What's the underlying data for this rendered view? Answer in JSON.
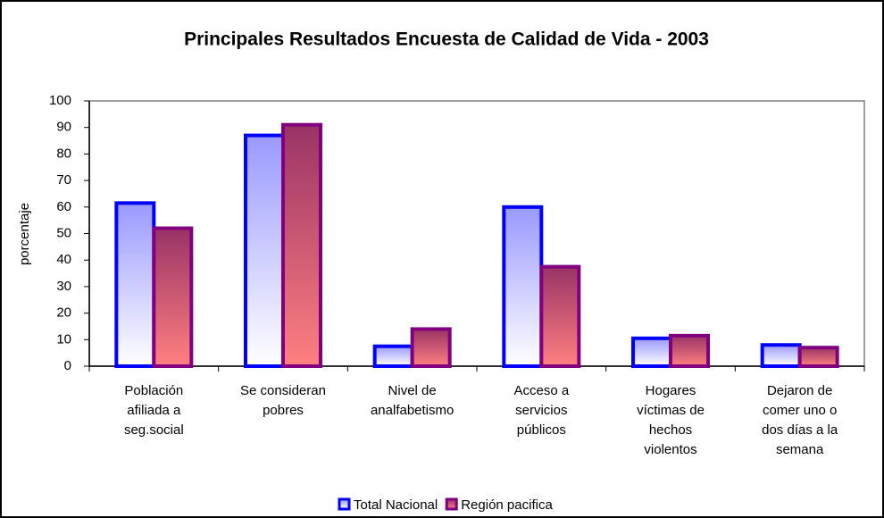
{
  "chart_data": {
    "type": "bar",
    "title": "Principales Resultados Encuesta de Calidad de Vida - 2003",
    "y_label": "porcentaje",
    "categories": [
      "Población\nafiliada a\nseg.social",
      "Se consideran\npobres",
      "Nivel de\nanalfabetismo",
      "Acceso a\nservicios\npúblicos",
      "Hogares\nvíctimas de\nhechos\nviolentos",
      "Dejaron de\ncomer uno o\ndos días a la\nsemana"
    ],
    "series": [
      {
        "name": "Total Nacional",
        "color": "#0000ff",
        "values": [
          61.5,
          87,
          7.5,
          60,
          10.5,
          8
        ]
      },
      {
        "name": "Región pacifica",
        "color": "#800080",
        "values": [
          52,
          91,
          14,
          37.5,
          11.5,
          7
        ]
      }
    ],
    "ylim": [
      0,
      100
    ],
    "yticks": [
      0,
      10,
      20,
      30,
      40,
      50,
      60,
      70,
      80,
      90,
      100
    ],
    "legend": "bottom"
  }
}
